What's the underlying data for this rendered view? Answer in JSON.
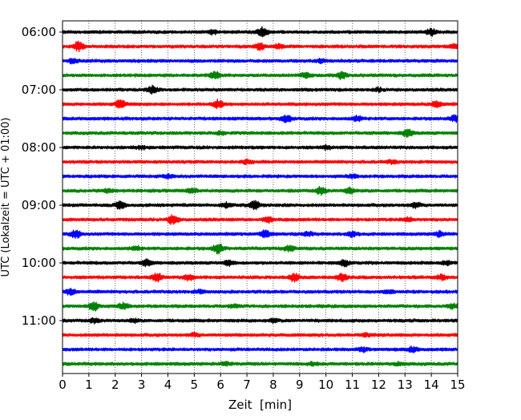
{
  "chart_data": {
    "type": "line",
    "title": "",
    "xlabel": "Zeit  [min]",
    "ylabel": "UTC (Lokalzeit = UTC + 01:00)",
    "xlim": [
      0,
      15
    ],
    "x_ticks": [
      0,
      1,
      2,
      3,
      4,
      5,
      6,
      7,
      8,
      9,
      10,
      11,
      12,
      13,
      14,
      15
    ],
    "y_tick_labels": [
      "06:00",
      "07:00",
      "08:00",
      "09:00",
      "10:00",
      "11:00"
    ],
    "row_start_times": [
      "06:00",
      "06:15",
      "06:30",
      "06:45",
      "07:00",
      "07:15",
      "07:30",
      "07:45",
      "08:00",
      "08:15",
      "08:30",
      "08:45",
      "09:00",
      "09:15",
      "09:30",
      "09:45",
      "10:00",
      "10:15",
      "10:30",
      "10:45",
      "11:00",
      "11:15",
      "11:30",
      "11:45"
    ],
    "row_colors": [
      "#000000",
      "#ff0000",
      "#0000ff",
      "#008000"
    ],
    "grid": "vertical dotted lines at each minute",
    "series_description": "Helicorder seismogram: 24 traces of 15 minutes each; amplitude bursts marked per row",
    "bursts": [
      [
        [
          7.6,
          0.9
        ],
        [
          14.0,
          0.7
        ],
        [
          5.7,
          0.4
        ]
      ],
      [
        [
          0.6,
          0.9
        ],
        [
          7.5,
          0.6
        ],
        [
          8.2,
          0.4
        ],
        [
          14.9,
          0.5
        ]
      ],
      [
        [
          0.4,
          0.4
        ],
        [
          9.8,
          0.3
        ]
      ],
      [
        [
          5.8,
          0.8
        ],
        [
          10.6,
          0.7
        ],
        [
          9.2,
          0.5
        ]
      ],
      [
        [
          3.4,
          0.7
        ],
        [
          12.0,
          0.3
        ]
      ],
      [
        [
          2.2,
          0.8
        ],
        [
          5.9,
          0.8
        ],
        [
          14.2,
          0.6
        ]
      ],
      [
        [
          8.5,
          0.7
        ],
        [
          11.2,
          0.5
        ],
        [
          14.9,
          0.6
        ]
      ],
      [
        [
          13.1,
          0.8
        ],
        [
          6.0,
          0.3
        ]
      ],
      [
        [
          3.0,
          0.3
        ],
        [
          10.0,
          0.3
        ]
      ],
      [
        [
          7.0,
          0.3
        ],
        [
          12.5,
          0.3
        ]
      ],
      [
        [
          4.0,
          0.3
        ],
        [
          11.0,
          0.3
        ]
      ],
      [
        [
          9.8,
          0.7
        ],
        [
          10.9,
          0.6
        ],
        [
          4.9,
          0.5
        ],
        [
          1.7,
          0.4
        ]
      ],
      [
        [
          2.2,
          0.8
        ],
        [
          7.3,
          0.9
        ],
        [
          13.4,
          0.5
        ],
        [
          6.2,
          0.4
        ]
      ],
      [
        [
          4.2,
          1.0
        ],
        [
          7.8,
          0.5
        ],
        [
          13.1,
          0.4
        ]
      ],
      [
        [
          0.5,
          0.8
        ],
        [
          7.7,
          0.7
        ],
        [
          11.0,
          0.6
        ],
        [
          14.3,
          0.5
        ],
        [
          9.3,
          0.4
        ]
      ],
      [
        [
          5.9,
          1.0
        ],
        [
          8.6,
          0.6
        ],
        [
          2.8,
          0.4
        ]
      ],
      [
        [
          3.2,
          0.6
        ],
        [
          6.3,
          0.5
        ],
        [
          10.7,
          0.6
        ],
        [
          14.6,
          0.4
        ]
      ],
      [
        [
          3.6,
          0.8
        ],
        [
          4.8,
          0.6
        ],
        [
          8.8,
          0.8
        ],
        [
          10.6,
          0.8
        ],
        [
          14.4,
          0.5
        ]
      ],
      [
        [
          0.3,
          0.6
        ],
        [
          5.2,
          0.3
        ],
        [
          12.4,
          0.3
        ]
      ],
      [
        [
          1.2,
          1.0
        ],
        [
          2.3,
          0.6
        ],
        [
          14.8,
          0.5
        ],
        [
          6.5,
          0.3
        ]
      ],
      [
        [
          1.2,
          0.4
        ],
        [
          2.7,
          0.3
        ],
        [
          8.0,
          0.3
        ]
      ],
      [
        [
          5.0,
          0.3
        ],
        [
          11.5,
          0.3
        ]
      ],
      [
        [
          11.4,
          0.4
        ],
        [
          13.3,
          0.5
        ]
      ],
      [
        [
          6.2,
          0.3
        ],
        [
          9.5,
          0.3
        ],
        [
          12.8,
          0.3
        ]
      ]
    ]
  }
}
